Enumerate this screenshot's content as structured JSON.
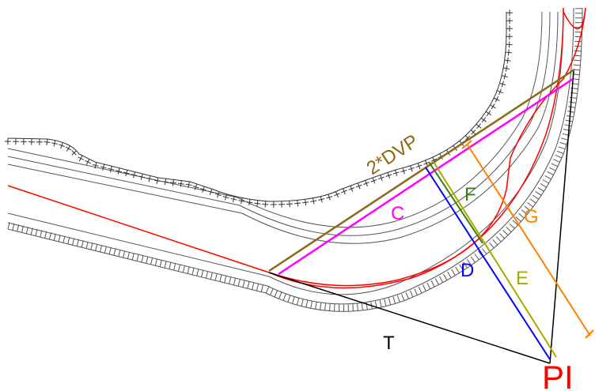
{
  "labels": {
    "dvp": "2*DVP",
    "c": "C",
    "d": "D",
    "e": "E",
    "f": "F",
    "g": "G",
    "t": "T",
    "pi": "PI"
  },
  "colors": {
    "centerline": "#ff0000",
    "dvp": "#8b6914",
    "c": "#ff00ff",
    "d": "#0000ff",
    "e": "#a8a800",
    "f": "#3a7d0f",
    "g": "#ff8000",
    "tangent": "#000000",
    "road_edge": "#606060",
    "pi_label": "#ff0000"
  }
}
